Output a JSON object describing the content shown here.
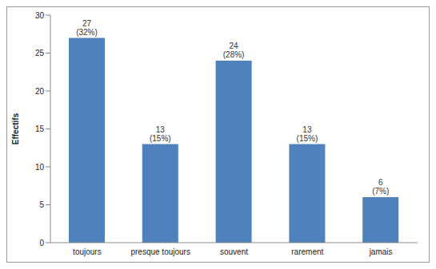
{
  "chart_data": {
    "type": "bar",
    "y_label": "Effectifs",
    "categories": [
      "toujours",
      "presque toujours",
      "souvent",
      "rarement",
      "jamais"
    ],
    "values": [
      27,
      13,
      24,
      13,
      6
    ],
    "value_labels": [
      "27 (32%)",
      "13 (15%)",
      "24 (28%)",
      "13 (15%)",
      "6 (7%)"
    ],
    "data_labels": true,
    "color": "#4f81bd",
    "ylim": [
      0,
      30
    ],
    "yticks": [
      0,
      5,
      10,
      15,
      20,
      25,
      30
    ],
    "grid": false
  }
}
